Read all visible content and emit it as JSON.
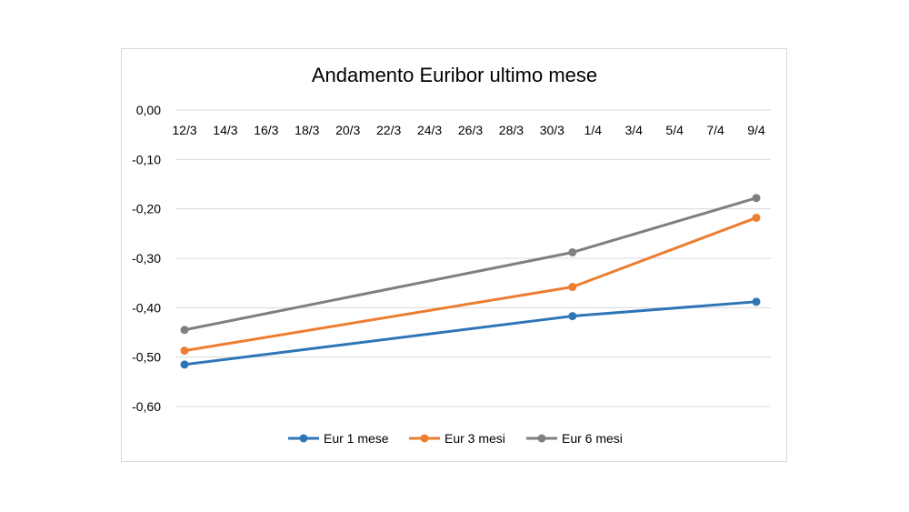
{
  "chart_data": {
    "type": "line",
    "title": "Andamento Euribor ultimo mese",
    "xlabel": "",
    "ylabel": "",
    "categories": [
      "12/3",
      "14/3",
      "16/3",
      "18/3",
      "20/3",
      "22/3",
      "24/3",
      "26/3",
      "28/3",
      "30/3",
      "1/4",
      "3/4",
      "5/4",
      "7/4",
      "9/4"
    ],
    "y_ticks": [
      "0,00",
      "-0,10",
      "-0,20",
      "-0,30",
      "-0,40",
      "-0,50",
      "-0,60"
    ],
    "ylim": [
      -0.6,
      0.0
    ],
    "grid": true,
    "legend_position": "bottom",
    "series": [
      {
        "name": "Eur 1 mese",
        "color": "#2e75b6",
        "points": [
          {
            "x": "12/3",
            "y": -0.515
          },
          {
            "x": "31/3",
            "y": -0.417
          },
          {
            "x": "9/4",
            "y": -0.388
          }
        ]
      },
      {
        "name": "Eur 3 mesi",
        "color": "#ed7d31",
        "points": [
          {
            "x": "12/3",
            "y": -0.487
          },
          {
            "x": "31/3",
            "y": -0.358
          },
          {
            "x": "9/4",
            "y": -0.218
          }
        ]
      },
      {
        "name": "Eur 6 mesi",
        "color": "#7f7f7f",
        "points": [
          {
            "x": "12/3",
            "y": -0.445
          },
          {
            "x": "31/3",
            "y": -0.288
          },
          {
            "x": "9/4",
            "y": -0.178
          }
        ]
      }
    ]
  }
}
